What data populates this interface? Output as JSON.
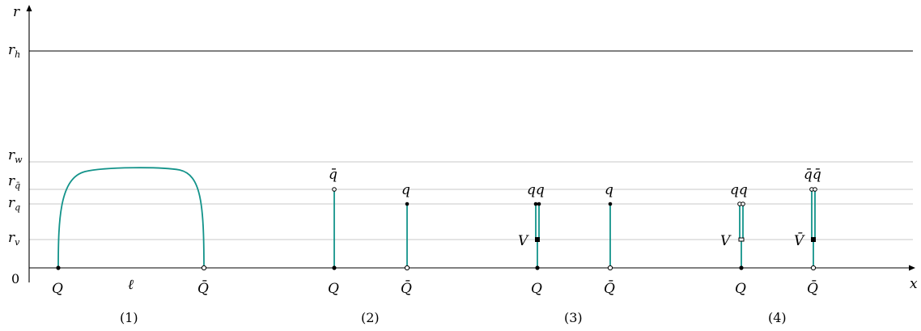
{
  "axes": {
    "x_label": "x",
    "y_label": "r",
    "origin_label": "0"
  },
  "levels": {
    "r_h": {
      "base": "r",
      "sub": "h"
    },
    "r_w": {
      "base": "r",
      "sub": "w"
    },
    "r_qbar": {
      "base": "r",
      "sub": "q̄"
    },
    "r_q": {
      "base": "r",
      "sub": "q"
    },
    "r_v": {
      "base": "r",
      "sub": "v"
    }
  },
  "panels": [
    {
      "label": "(1)",
      "bottom_labels": [
        "Q",
        "ℓ",
        "Q̄"
      ]
    },
    {
      "label": "(2)",
      "bottom_labels": [
        "Q",
        "Q̄"
      ],
      "top_labels": [
        "q̄",
        "q"
      ]
    },
    {
      "label": "(3)",
      "bottom_labels": [
        "Q",
        "Q̄"
      ],
      "top_labels": [
        "qq",
        "q"
      ],
      "mid_labels": [
        "V"
      ]
    },
    {
      "label": "(4)",
      "bottom_labels": [
        "Q",
        "Q̄"
      ],
      "top_labels": [
        "qq",
        "q̄q̄"
      ],
      "mid_labels": [
        "V",
        "V̄"
      ]
    }
  ],
  "colors": {
    "string": "#13938a",
    "axis": "#000000",
    "grid": "#c8c8c8"
  }
}
